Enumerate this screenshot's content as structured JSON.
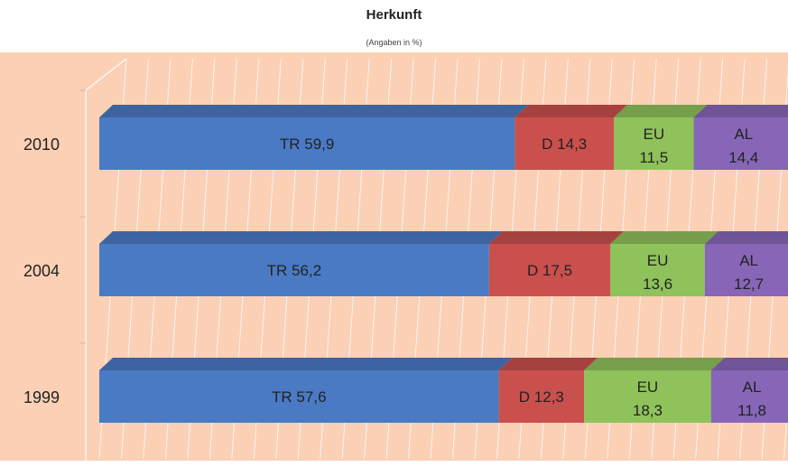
{
  "chart_data": {
    "type": "bar",
    "orientation": "horizontal",
    "stacked": true,
    "title": "Herkunft",
    "subtitle": "(Angaben in %)",
    "categories": [
      "2010",
      "2004",
      "1999"
    ],
    "series": [
      {
        "label": "TR",
        "color": "#4a7ac4",
        "values": [
          59.9,
          56.2,
          57.6
        ],
        "value_labels": [
          "59,9",
          "56,2",
          "57,6"
        ]
      },
      {
        "label": "D",
        "color": "#c9504d",
        "values": [
          14.3,
          17.5,
          12.3
        ],
        "value_labels": [
          "14,3",
          "17,5",
          "12,3"
        ]
      },
      {
        "label": "EU",
        "color": "#8fc25a",
        "values": [
          11.5,
          13.6,
          18.3
        ],
        "value_labels": [
          "11,5",
          "13,6",
          "18,3"
        ]
      },
      {
        "label": "AL",
        "color": "#8766b8",
        "values": [
          14.4,
          12.7,
          11.8
        ],
        "value_labels": [
          "14,4",
          "12,7",
          "11,8"
        ]
      }
    ],
    "xlim": [
      0,
      100
    ],
    "grid": true,
    "background_color": "#fbd0b4"
  }
}
